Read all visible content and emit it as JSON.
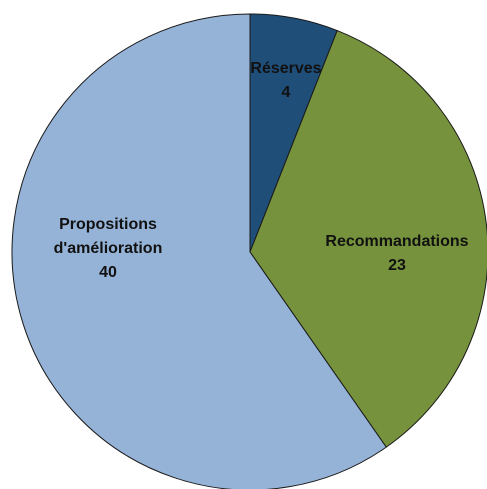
{
  "chart_data": {
    "type": "pie",
    "title": "",
    "slices": [
      {
        "label": "Réserves",
        "value": 4,
        "color": "#1F4E79"
      },
      {
        "label": "Recommandations",
        "value": 23,
        "color": "#76923C"
      },
      {
        "label": "Propositions d'amélioration",
        "value": 40,
        "color": "#95B3D7"
      }
    ],
    "start_angle": "12 o'clock",
    "direction": "clockwise",
    "legend": "none"
  }
}
